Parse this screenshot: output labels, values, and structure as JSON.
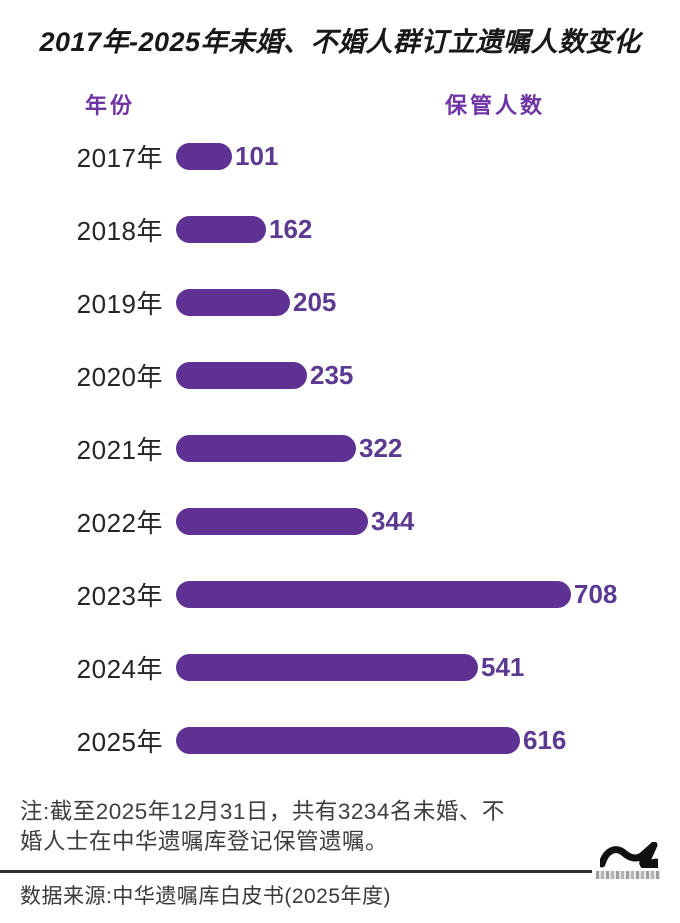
{
  "title": "2017年-2025年未婚、不婚人群订立遗嘱人数变化",
  "columns": {
    "year": "年份",
    "count": "保管人数"
  },
  "chart_data": {
    "type": "bar",
    "orientation": "horizontal",
    "categories": [
      "2017年",
      "2018年",
      "2019年",
      "2020年",
      "2021年",
      "2022年",
      "2023年",
      "2024年",
      "2025年"
    ],
    "values": [
      101,
      162,
      205,
      235,
      322,
      344,
      708,
      541,
      616
    ],
    "title": "2017年-2025年未婚、不婚人群订立遗嘱人数变化",
    "xlabel": "保管人数",
    "ylabel": "年份",
    "xlim": [
      0,
      708
    ],
    "grid": false,
    "legend": "none",
    "bar_color": "#5e3193",
    "value_label_color": "#5c3a92"
  },
  "note": "注:截至2025年12月31日，共有3234名未婚、不婚人士在中华遗嘱库登记保管遗嘱。",
  "source": "数据来源:中华遗嘱库白皮书(2025年度)",
  "logo": {
    "icon": "wave-logo",
    "color": "#111111"
  },
  "colors": {
    "accent_purple": "#5e3193",
    "header_purple": "#6f34a4",
    "title_black": "#181818",
    "background": "#ffffff"
  }
}
